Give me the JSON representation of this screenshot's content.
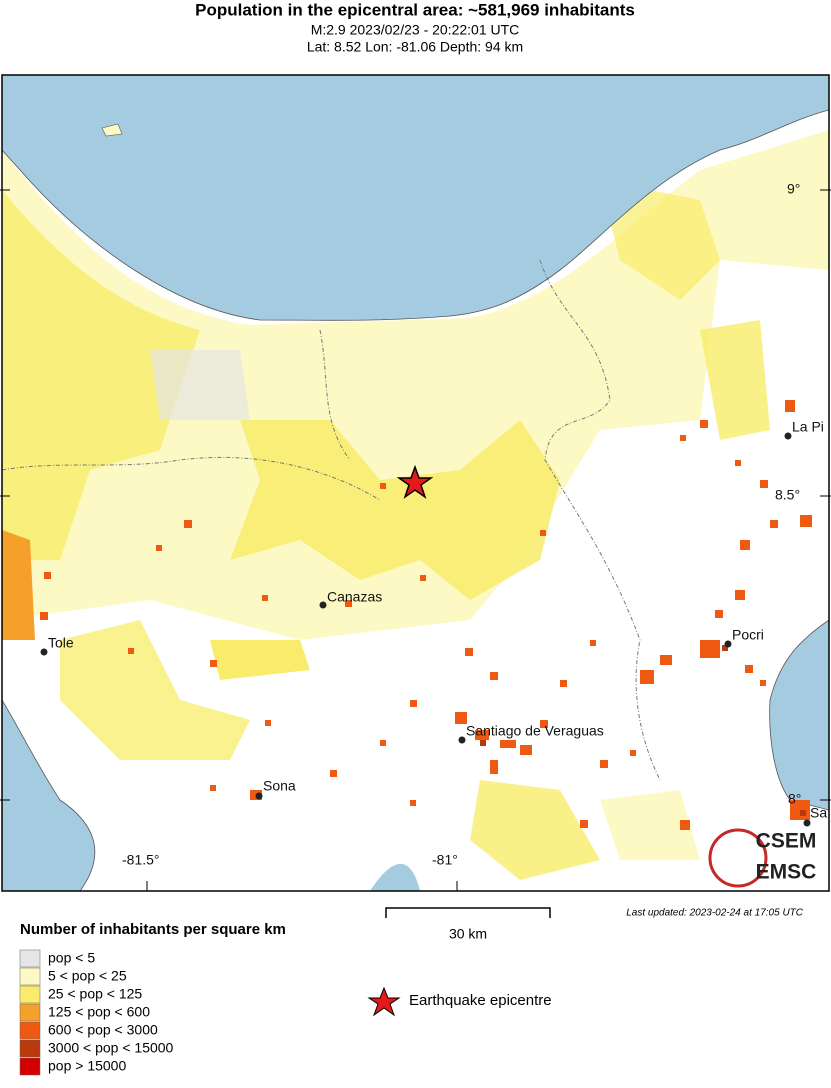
{
  "header": {
    "title": "Population in the epicentral area: ~581,969 inhabitants",
    "subtitle": "M:2.9 2023/02/23 - 20:22:01 UTC",
    "location": "Lat: 8.52 Lon: -81.06 Depth: 94 km"
  },
  "map": {
    "cities": [
      "La Pi",
      "Canazas",
      "Tole",
      "Pocri",
      "Santiago de Veraguas",
      "Sona",
      "Sa"
    ],
    "lon_labels": [
      "-81.5°",
      "-81°"
    ],
    "lat_labels": [
      "9°",
      "8.5°",
      "8°"
    ]
  },
  "scale": "30 km",
  "last_updated": "Last updated: 2023-02-24 at 17:05 UTC",
  "legend": {
    "title": "Number of inhabitants per square km",
    "items": [
      {
        "label": "pop < 5",
        "color": "#e6e6e6"
      },
      {
        "label": "5 < pop < 25",
        "color": "#fdf9c4"
      },
      {
        "label": "25 < pop < 125",
        "color": "#f8ec6a"
      },
      {
        "label": "125 < pop < 600",
        "color": "#f5a02a"
      },
      {
        "label": "600 < pop < 3000",
        "color": "#ef5a12"
      },
      {
        "label": "3000 < pop < 15000",
        "color": "#b8390c"
      },
      {
        "label": "pop > 15000",
        "color": "#d40000"
      }
    ],
    "epicentre": "Earthquake epicentre"
  },
  "logo": [
    "CSEM",
    "EMSC"
  ]
}
